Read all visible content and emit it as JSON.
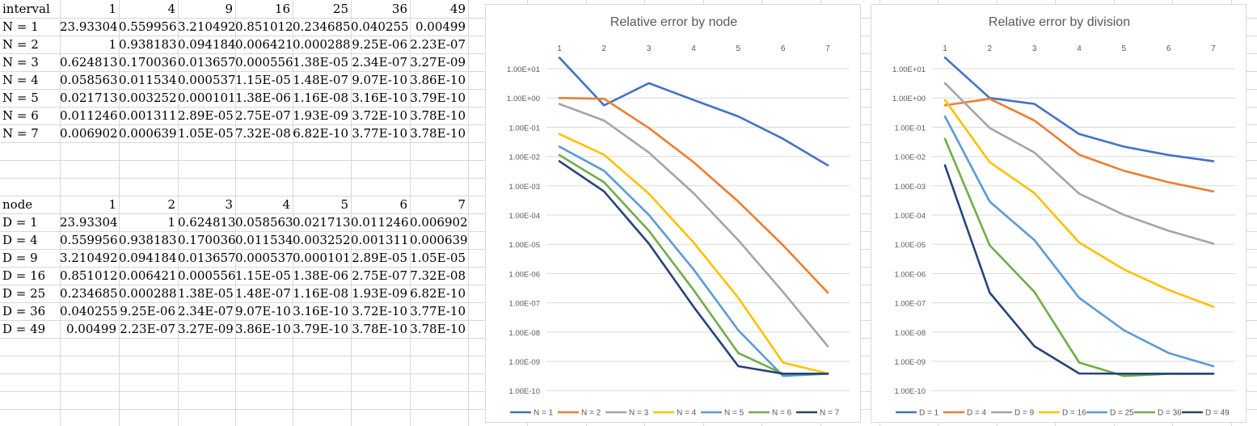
{
  "table1": {
    "corner": "interval",
    "headers": [
      "1",
      "4",
      "9",
      "16",
      "25",
      "36",
      "49"
    ],
    "rows": [
      {
        "label": "N = 1",
        "cells": [
          "23.93304",
          "0.559956",
          "3.210492",
          "0.851012",
          "0.234685",
          "0.040255",
          "0.00499"
        ]
      },
      {
        "label": "N = 2",
        "cells": [
          "1",
          "0.938183",
          "0.094184",
          "0.006421",
          "0.000288",
          "9.25E-06",
          "2.23E-07"
        ]
      },
      {
        "label": "N = 3",
        "cells": [
          "0.624813",
          "0.170036",
          "0.013657",
          "0.000556",
          "1.38E-05",
          "2.34E-07",
          "3.27E-09"
        ]
      },
      {
        "label": "N = 4",
        "cells": [
          "0.058563",
          "0.011534",
          "0.000537",
          "1.15E-05",
          "1.48E-07",
          "9.07E-10",
          "3.86E-10"
        ]
      },
      {
        "label": "N = 5",
        "cells": [
          "0.021713",
          "0.003252",
          "0.000101",
          "1.38E-06",
          "1.16E-08",
          "3.16E-10",
          "3.79E-10"
        ]
      },
      {
        "label": "N = 6",
        "cells": [
          "0.011246",
          "0.001311",
          "2.89E-05",
          "2.75E-07",
          "1.93E-09",
          "3.72E-10",
          "3.78E-10"
        ]
      },
      {
        "label": "N = 7",
        "cells": [
          "0.006902",
          "0.000639",
          "1.05E-05",
          "7.32E-08",
          "6.82E-10",
          "3.77E-10",
          "3.78E-10"
        ]
      }
    ]
  },
  "table2": {
    "corner": "node",
    "headers": [
      "1",
      "2",
      "3",
      "4",
      "5",
      "6",
      "7"
    ],
    "rows": [
      {
        "label": "D = 1",
        "cells": [
          "23.93304",
          "1",
          "0.624813",
          "0.058563",
          "0.021713",
          "0.011246",
          "0.006902"
        ]
      },
      {
        "label": "D = 4",
        "cells": [
          "0.559956",
          "0.938183",
          "0.170036",
          "0.011534",
          "0.003252",
          "0.001311",
          "0.000639"
        ]
      },
      {
        "label": "D = 9",
        "cells": [
          "3.210492",
          "0.094184",
          "0.013657",
          "0.000537",
          "0.000101",
          "2.89E-05",
          "1.05E-05"
        ]
      },
      {
        "label": "D = 16",
        "cells": [
          "0.851012",
          "0.006421",
          "0.000556",
          "1.15E-05",
          "1.38E-06",
          "2.75E-07",
          "7.32E-08"
        ]
      },
      {
        "label": "D = 25",
        "cells": [
          "0.234685",
          "0.000288",
          "1.38E-05",
          "1.48E-07",
          "1.16E-08",
          "1.93E-09",
          "6.82E-10"
        ]
      },
      {
        "label": "D = 36",
        "cells": [
          "0.040255",
          "9.25E-06",
          "2.34E-07",
          "9.07E-10",
          "3.16E-10",
          "3.72E-10",
          "3.77E-10"
        ]
      },
      {
        "label": "D = 49",
        "cells": [
          "0.00499",
          "2.23E-07",
          "3.27E-09",
          "3.86E-10",
          "3.79E-10",
          "3.78E-10",
          "3.78E-10"
        ]
      }
    ]
  },
  "chart_data": [
    {
      "type": "line",
      "title": "Relative error by node",
      "xlabel": "",
      "ylabel": "",
      "x": [
        1,
        2,
        3,
        4,
        5,
        6,
        7
      ],
      "y_scale": "log",
      "ylim": [
        1e-10,
        10
      ],
      "y_ticks": [
        "1.00E+01",
        "1.00E+00",
        "1.00E-01",
        "1.00E-02",
        "1.00E-03",
        "1.00E-04",
        "1.00E-05",
        "1.00E-06",
        "1.00E-07",
        "1.00E-08",
        "1.00E-09",
        "1.00E-10"
      ],
      "x_axis_position": "top",
      "grid": true,
      "legend": "bottom",
      "series": [
        {
          "name": "N = 1",
          "color": "#4472C4",
          "values": [
            23.93304,
            0.559956,
            3.210492,
            0.851012,
            0.234685,
            0.040255,
            0.00499
          ]
        },
        {
          "name": "N = 2",
          "color": "#ED7D31",
          "values": [
            1,
            0.938183,
            0.094184,
            0.006421,
            0.000288,
            9.25e-06,
            2.23e-07
          ]
        },
        {
          "name": "N = 3",
          "color": "#A5A5A5",
          "values": [
            0.624813,
            0.170036,
            0.013657,
            0.000556,
            1.38e-05,
            2.34e-07,
            3.27e-09
          ]
        },
        {
          "name": "N = 4",
          "color": "#FFC000",
          "values": [
            0.058563,
            0.011534,
            0.000537,
            1.15e-05,
            1.48e-07,
            9.07e-10,
            3.86e-10
          ]
        },
        {
          "name": "N = 5",
          "color": "#5B9BD5",
          "values": [
            0.021713,
            0.003252,
            0.000101,
            1.38e-06,
            1.16e-08,
            3.16e-10,
            3.79e-10
          ]
        },
        {
          "name": "N = 6",
          "color": "#70AD47",
          "values": [
            0.011246,
            0.001311,
            2.89e-05,
            2.75e-07,
            1.93e-09,
            3.72e-10,
            3.78e-10
          ]
        },
        {
          "name": "N = 7",
          "color": "#264478",
          "values": [
            0.006902,
            0.000639,
            1.05e-05,
            7.32e-08,
            6.82e-10,
            3.77e-10,
            3.78e-10
          ]
        }
      ]
    },
    {
      "type": "line",
      "title": "Relative error by division",
      "xlabel": "",
      "ylabel": "",
      "x": [
        1,
        2,
        3,
        4,
        5,
        6,
        7
      ],
      "y_scale": "log",
      "ylim": [
        1e-10,
        10
      ],
      "y_ticks": [
        "1.00E+01",
        "1.00E+00",
        "1.00E-01",
        "1.00E-02",
        "1.00E-03",
        "1.00E-04",
        "1.00E-05",
        "1.00E-06",
        "1.00E-07",
        "1.00E-08",
        "1.00E-09",
        "1.00E-10"
      ],
      "x_axis_position": "top",
      "grid": true,
      "legend": "bottom",
      "series": [
        {
          "name": "D = 1",
          "color": "#4472C4",
          "values": [
            23.93304,
            1,
            0.624813,
            0.058563,
            0.021713,
            0.011246,
            0.006902
          ]
        },
        {
          "name": "D = 4",
          "color": "#ED7D31",
          "values": [
            0.559956,
            0.938183,
            0.170036,
            0.011534,
            0.003252,
            0.001311,
            0.000639
          ]
        },
        {
          "name": "D = 9",
          "color": "#A5A5A5",
          "values": [
            3.210492,
            0.094184,
            0.013657,
            0.000537,
            0.000101,
            2.89e-05,
            1.05e-05
          ]
        },
        {
          "name": "D = 16",
          "color": "#FFC000",
          "values": [
            0.851012,
            0.006421,
            0.000556,
            1.15e-05,
            1.38e-06,
            2.75e-07,
            7.32e-08
          ]
        },
        {
          "name": "D = 25",
          "color": "#5B9BD5",
          "values": [
            0.234685,
            0.000288,
            1.38e-05,
            1.48e-07,
            1.16e-08,
            1.93e-09,
            6.82e-10
          ]
        },
        {
          "name": "D = 36",
          "color": "#70AD47",
          "values": [
            0.040255,
            9.25e-06,
            2.34e-07,
            9.07e-10,
            3.16e-10,
            3.72e-10,
            3.77e-10
          ]
        },
        {
          "name": "D = 49",
          "color": "#264478",
          "values": [
            0.00499,
            2.23e-07,
            3.27e-09,
            3.86e-10,
            3.79e-10,
            3.78e-10,
            3.78e-10
          ]
        }
      ]
    }
  ]
}
